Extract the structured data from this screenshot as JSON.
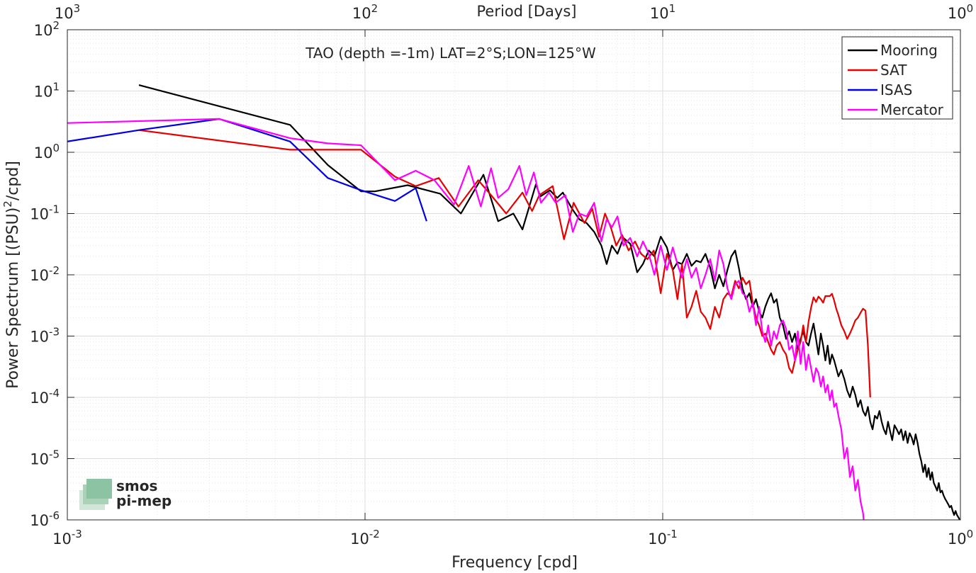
{
  "chart_data": {
    "type": "line",
    "title": "TAO (depth =-1m) LAT=2°S;LON=125°W",
    "xlabel": "Frequency [cpd]",
    "ylabel": "Power Spectrum [(PSU)²/cpd]",
    "ylabel_main": "Power Spectrum [(PSU)",
    "ylabel_exp": "2",
    "ylabel_tail": "/cpd]",
    "top_axis_label": "Period [Days]",
    "x_scale": "log",
    "y_scale": "log",
    "xlim": [
      0.001,
      1
    ],
    "ylim": [
      1e-06,
      100
    ],
    "grid": true,
    "legend_position": "top-right",
    "x_ticks": [
      {
        "value": 0.001,
        "base": "10",
        "exp": "-3"
      },
      {
        "value": 0.01,
        "base": "10",
        "exp": "-2"
      },
      {
        "value": 0.1,
        "base": "10",
        "exp": "-1"
      },
      {
        "value": 1,
        "base": "10",
        "exp": "0"
      }
    ],
    "y_ticks": [
      {
        "value": 100,
        "base": "10",
        "exp": "2"
      },
      {
        "value": 10,
        "base": "10",
        "exp": "1"
      },
      {
        "value": 1,
        "base": "10",
        "exp": "0"
      },
      {
        "value": 0.1,
        "base": "10",
        "exp": "-1"
      },
      {
        "value": 0.01,
        "base": "10",
        "exp": "-2"
      },
      {
        "value": 0.001,
        "base": "10",
        "exp": "-3"
      },
      {
        "value": 0.0001,
        "base": "10",
        "exp": "-4"
      },
      {
        "value": 1e-05,
        "base": "10",
        "exp": "-5"
      },
      {
        "value": 1e-06,
        "base": "10",
        "exp": "-6"
      }
    ],
    "top_ticks": [
      {
        "value": 0.001,
        "base": "10",
        "exp": "3"
      },
      {
        "value": 0.01,
        "base": "10",
        "exp": "2"
      },
      {
        "value": 0.1,
        "base": "10",
        "exp": "1"
      },
      {
        "value": 1,
        "base": "10",
        "exp": "0"
      }
    ],
    "series": [
      {
        "name": "Mooring",
        "color": "#000000",
        "x": [
          0.00174,
          0.0056,
          0.0075,
          0.0097,
          0.0108,
          0.0139,
          0.0179,
          0.021,
          0.025,
          0.028,
          0.0315,
          0.0338,
          0.0375,
          0.0388,
          0.0418,
          0.0442,
          0.0462,
          0.0496,
          0.0525,
          0.0555,
          0.0589,
          0.0622,
          0.0648,
          0.0675,
          0.0705,
          0.0738,
          0.0778,
          0.0821,
          0.0858,
          0.0898,
          0.0938,
          0.0985,
          0.1033,
          0.1081,
          0.1121,
          0.1161,
          0.1205,
          0.1249,
          0.1296,
          0.1342,
          0.1392,
          0.1445,
          0.1497,
          0.1548,
          0.1599,
          0.165,
          0.17,
          0.1751,
          0.1802,
          0.1854,
          0.1904,
          0.1955,
          0.2006,
          0.2058,
          0.2109,
          0.216,
          0.2211,
          0.2261,
          0.2312,
          0.2362,
          0.2413,
          0.2474,
          0.2536,
          0.2598,
          0.2659,
          0.272,
          0.2781,
          0.2843,
          0.2905,
          0.2966,
          0.3028,
          0.3089,
          0.315,
          0.3212,
          0.3274,
          0.3335,
          0.3397,
          0.3458,
          0.352,
          0.3581,
          0.3642,
          0.3704,
          0.3766,
          0.3828,
          0.3892,
          0.3982,
          0.4073,
          0.4163,
          0.4254,
          0.4346,
          0.4435,
          0.4526,
          0.4618,
          0.4708,
          0.4799,
          0.4889,
          0.498,
          0.507,
          0.5161,
          0.5254,
          0.5346,
          0.5438,
          0.553,
          0.5622,
          0.5714,
          0.5806,
          0.59,
          0.6006,
          0.6113,
          0.622,
          0.6326,
          0.6433,
          0.654,
          0.6646,
          0.6753,
          0.686,
          0.6966,
          0.7073,
          0.718,
          0.7286,
          0.7393,
          0.75,
          0.7606,
          0.7713,
          0.782,
          0.7926,
          0.8033,
          0.814,
          0.8246,
          0.8353,
          0.846,
          0.8566,
          0.8673,
          0.878,
          0.8886,
          0.8993,
          0.91,
          0.9206,
          0.9313,
          0.942,
          0.9526,
          0.9633,
          0.974,
          0.9846,
          0.9953
        ],
        "y": [
          12.5,
          2.8,
          0.62,
          0.23,
          0.23,
          0.29,
          0.21,
          0.1,
          0.43,
          0.075,
          0.1,
          0.055,
          0.3,
          0.19,
          0.24,
          0.18,
          0.22,
          0.12,
          0.08,
          0.07,
          0.05,
          0.03,
          0.015,
          0.03,
          0.022,
          0.04,
          0.032,
          0.011,
          0.015,
          0.025,
          0.02,
          0.042,
          0.028,
          0.012,
          0.016,
          0.015,
          0.022,
          0.014,
          0.017,
          0.016,
          0.022,
          0.013,
          0.006,
          0.01,
          0.0065,
          0.012,
          0.02,
          0.025,
          0.013,
          0.006,
          0.004,
          0.005,
          0.003,
          0.004,
          0.0025,
          0.002,
          0.003,
          0.004,
          0.005,
          0.0035,
          0.004,
          0.002,
          0.0015,
          0.0009,
          0.0012,
          0.0008,
          0.0011,
          0.0006,
          0.0009,
          0.0012,
          0.0008,
          0.0007,
          0.0011,
          0.0016,
          0.0009,
          0.0005,
          0.0011,
          0.0007,
          0.0004,
          0.0007,
          0.00035,
          0.0005,
          0.0004,
          0.0003,
          0.00022,
          0.00028,
          0.0002,
          0.00013,
          0.0001,
          0.00015,
          0.00011,
          7e-05,
          9e-05,
          6e-05,
          5e-05,
          7e-05,
          4e-05,
          3e-05,
          5e-05,
          4.5e-05,
          6e-05,
          4e-05,
          3e-05,
          2.5e-05,
          4e-05,
          2.8e-05,
          2e-05,
          3.5e-05,
          3e-05,
          2.5e-05,
          3e-05,
          2e-05,
          2.8e-05,
          1.8e-05,
          2.6e-05,
          2.2e-05,
          1.7e-05,
          2.5e-05,
          1.8e-05,
          1.2e-05,
          9e-06,
          6e-06,
          8e-06,
          5e-06,
          7e-06,
          4.5e-06,
          6e-06,
          4e-06,
          3.5e-06,
          3e-06,
          4e-06,
          2.8e-06,
          3e-06,
          2.5e-06,
          2.2e-06,
          2e-06,
          1.8e-06,
          1.6e-06,
          1.7e-06,
          1.4e-06,
          1.2e-06,
          1.4e-06,
          1.2e-06,
          1.1e-06,
          1e-06
        ]
      },
      {
        "name": "SAT",
        "color": "#e60000",
        "x": [
          0.00174,
          0.0056,
          0.0097,
          0.0126,
          0.0148,
          0.0177,
          0.0206,
          0.024,
          0.0265,
          0.0298,
          0.0338,
          0.0364,
          0.0385,
          0.0427,
          0.0466,
          0.0502,
          0.0546,
          0.058,
          0.0611,
          0.064,
          0.0669,
          0.0698,
          0.073,
          0.0768,
          0.0807,
          0.0846,
          0.0889,
          0.0933,
          0.0985,
          0.1033,
          0.1081,
          0.1121,
          0.1161,
          0.1205,
          0.1249,
          0.1296,
          0.1342,
          0.1392,
          0.1445,
          0.1497,
          0.1548,
          0.1599,
          0.165,
          0.17,
          0.1751,
          0.1802,
          0.1854,
          0.1904,
          0.1955,
          0.2006,
          0.2058,
          0.2109,
          0.216,
          0.2211,
          0.2261,
          0.2312,
          0.2362,
          0.2413,
          0.2474,
          0.2536,
          0.2598,
          0.2659,
          0.272,
          0.2781,
          0.2843,
          0.2905,
          0.2966,
          0.3028,
          0.3089,
          0.315,
          0.3212,
          0.3274,
          0.3335,
          0.3397,
          0.3458,
          0.352,
          0.3581,
          0.3642,
          0.3704,
          0.3766,
          0.3828,
          0.3892,
          0.3982,
          0.4073,
          0.4163,
          0.4254,
          0.4346,
          0.4435,
          0.4526,
          0.4618,
          0.4708,
          0.4799,
          0.4889,
          0.498
        ],
        "y": [
          2.3,
          1.1,
          1.1,
          0.4,
          0.28,
          0.38,
          0.13,
          0.35,
          0.2,
          0.1,
          0.22,
          0.11,
          0.2,
          0.28,
          0.038,
          0.15,
          0.07,
          0.12,
          0.042,
          0.1,
          0.06,
          0.03,
          0.045,
          0.025,
          0.035,
          0.022,
          0.018,
          0.025,
          0.005,
          0.022,
          0.012,
          0.004,
          0.015,
          0.002,
          0.003,
          0.0055,
          0.0025,
          0.002,
          0.0013,
          0.003,
          0.002,
          0.004,
          0.005,
          0.0045,
          0.008,
          0.006,
          0.009,
          0.007,
          0.008,
          0.0035,
          0.002,
          0.0015,
          0.001,
          0.0011,
          0.0008,
          0.0006,
          0.0005,
          0.0007,
          0.0008,
          0.0006,
          0.0005,
          0.0003,
          0.00025,
          0.0004,
          0.0006,
          0.0008,
          0.0015,
          0.0008,
          0.0017,
          0.0029,
          0.0043,
          0.0036,
          0.0044,
          0.004,
          0.0035,
          0.0045,
          0.0045,
          0.0045,
          0.0049,
          0.0038,
          0.0028,
          0.0022,
          0.0015,
          0.0012,
          0.0009,
          0.0011,
          0.0014,
          0.0018,
          0.002,
          0.0024,
          0.0028,
          0.0026,
          0.0007,
          0.0001
        ]
      },
      {
        "name": "ISAS",
        "color": "#0000e6",
        "x": [
          0.001,
          0.00174,
          0.00324,
          0.0056,
          0.0075,
          0.0097,
          0.0126,
          0.0148,
          0.0161
        ],
        "y": [
          1.5,
          2.3,
          3.5,
          1.5,
          0.38,
          0.24,
          0.16,
          0.26,
          0.075
        ]
      },
      {
        "name": "Mercator",
        "color": "#ff00ff",
        "x": [
          0.001,
          0.00324,
          0.0056,
          0.0075,
          0.0097,
          0.0126,
          0.0148,
          0.0171,
          0.0199,
          0.0223,
          0.0245,
          0.0265,
          0.028,
          0.0303,
          0.033,
          0.0348,
          0.0369,
          0.039,
          0.0415,
          0.0437,
          0.0471,
          0.0499,
          0.0525,
          0.0555,
          0.0589,
          0.0622,
          0.0648,
          0.0675,
          0.0705,
          0.0738,
          0.0778,
          0.0821,
          0.0858,
          0.0898,
          0.0938,
          0.0985,
          0.1033,
          0.1081,
          0.1121,
          0.1161,
          0.1205,
          0.1249,
          0.1296,
          0.1342,
          0.1392,
          0.1445,
          0.1497,
          0.1548,
          0.1599,
          0.165,
          0.17,
          0.1751,
          0.1802,
          0.1854,
          0.1904,
          0.1955,
          0.2006,
          0.2058,
          0.2109,
          0.216,
          0.2211,
          0.2261,
          0.2312,
          0.2362,
          0.2413,
          0.2474,
          0.2536,
          0.2598,
          0.2659,
          0.272,
          0.2781,
          0.2843,
          0.2905,
          0.2966,
          0.3028,
          0.3089,
          0.315,
          0.3212,
          0.3274,
          0.3335,
          0.3397,
          0.3458,
          0.352,
          0.3581,
          0.3642,
          0.3704,
          0.3766,
          0.3828,
          0.3892,
          0.3982,
          0.4073,
          0.4163,
          0.4254,
          0.4346,
          0.4435,
          0.4526,
          0.4618,
          0.4708,
          0.4799
        ],
        "y": [
          3.0,
          3.5,
          1.7,
          1.4,
          1.3,
          0.35,
          0.5,
          0.35,
          0.14,
          0.6,
          0.13,
          0.55,
          0.18,
          0.25,
          0.6,
          0.2,
          0.47,
          0.15,
          0.22,
          0.15,
          0.2,
          0.05,
          0.1,
          0.09,
          0.15,
          0.035,
          0.08,
          0.06,
          0.09,
          0.03,
          0.04,
          0.02,
          0.035,
          0.022,
          0.01,
          0.03,
          0.012,
          0.028,
          0.015,
          0.009,
          0.018,
          0.009,
          0.013,
          0.006,
          0.01,
          0.018,
          0.008,
          0.025,
          0.015,
          0.006,
          0.004,
          0.007,
          0.008,
          0.005,
          0.0045,
          0.0025,
          0.0035,
          0.0015,
          0.003,
          0.0012,
          0.0008,
          0.0015,
          0.0007,
          0.0012,
          0.0009,
          0.0015,
          0.0018,
          0.0013,
          0.0006,
          0.0007,
          0.0004,
          0.0012,
          0.00035,
          0.0008,
          0.00028,
          0.0005,
          0.0003,
          0.00018,
          0.0003,
          0.00025,
          0.00015,
          0.00022,
          0.00012,
          0.00016,
          9e-05,
          0.00013,
          7e-05,
          8e-05,
          5e-05,
          3e-05,
          1e-05,
          1.5e-05,
          5e-06,
          7.5e-06,
          3e-06,
          4.5e-06,
          2e-06,
          1.3e-06,
          5e-07
        ]
      }
    ]
  },
  "watermark": {
    "line1": "smos",
    "line2": "pi-mep",
    "color": "#5aa77e"
  }
}
